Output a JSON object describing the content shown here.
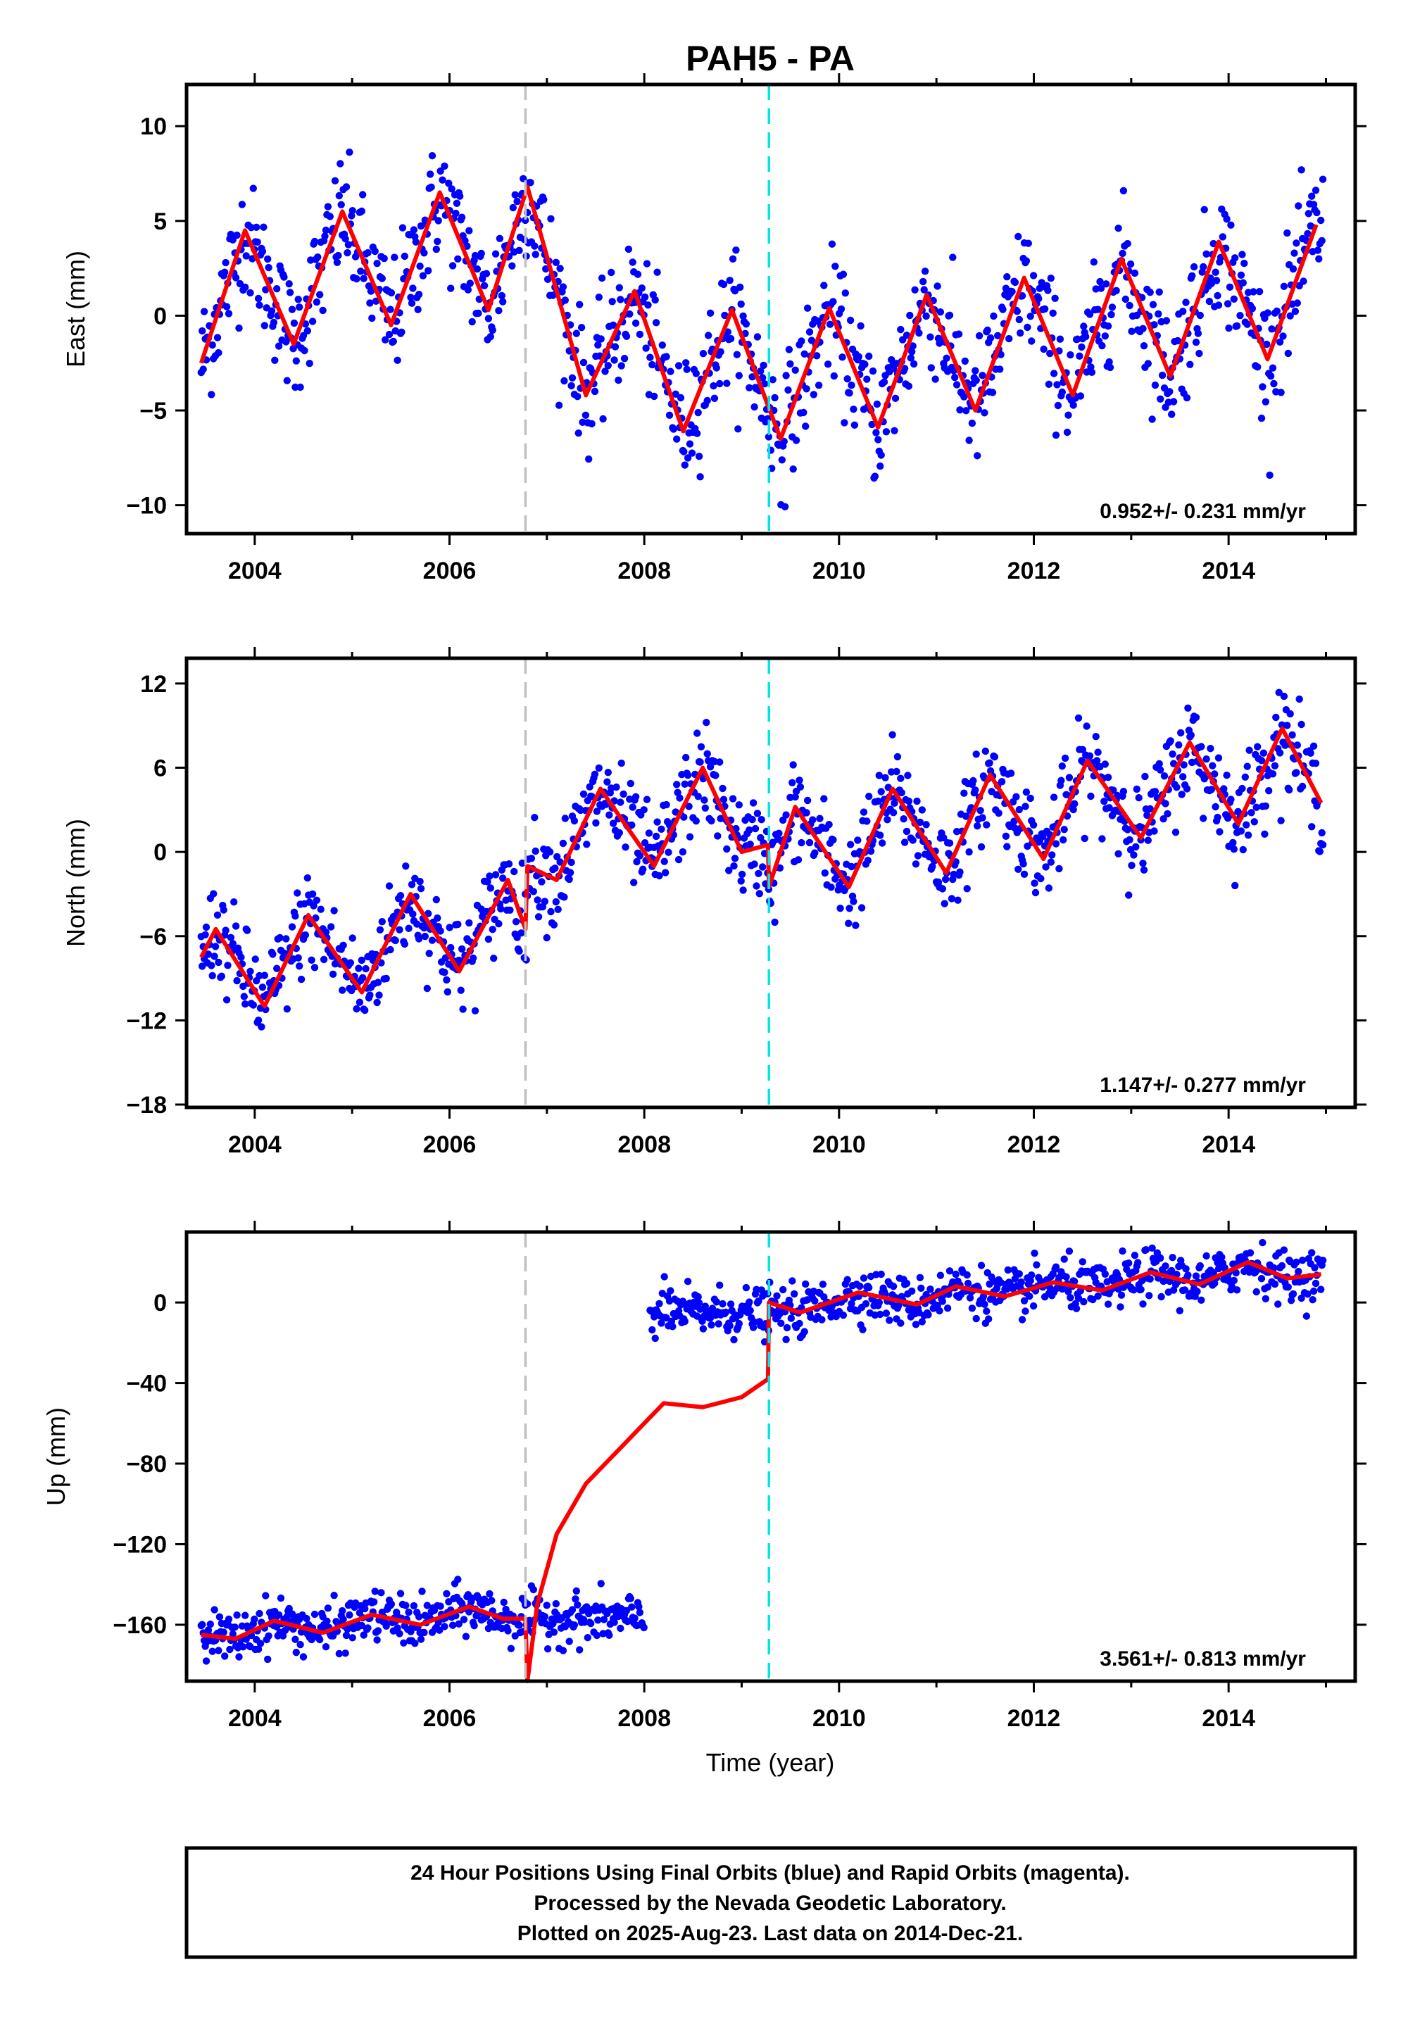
{
  "title": "PAH5 - PA",
  "xlabel": "Time (year)",
  "colors": {
    "final_orbits": "#0000ff",
    "model": "#ff0000",
    "event_gray": "#c0c0c0",
    "event_cyan": "#00e5e5"
  },
  "footer": {
    "line1": "24 Hour Positions Using Final Orbits (blue) and Rapid Orbits (magenta).",
    "line2": "Processed by the Nevada Geodetic Laboratory.",
    "line3": "Plotted on 2025-Aug-23. Last data on 2014-Dec-21."
  },
  "chart_data": [
    {
      "type": "scatter",
      "ylabel": "East (mm)",
      "rate_label": "0.952+/- 0.231 mm/yr",
      "xlim": [
        2003.3,
        2015.3
      ],
      "ylim": [
        -11.5,
        12.2
      ],
      "xticks": [
        2004,
        2006,
        2008,
        2010,
        2012,
        2014
      ],
      "yticks": [
        -10,
        -5,
        0,
        5,
        10
      ],
      "events": [
        {
          "x": 2006.78,
          "color": "gray"
        },
        {
          "x": 2009.28,
          "color": "cyan"
        }
      ],
      "series": [
        {
          "x": [
            2003.45,
            2003.9,
            2004.4,
            2004.9,
            2005.4,
            2005.9,
            2006.4,
            2006.8,
            2007.4,
            2007.9,
            2008.4,
            2008.9,
            2009.4,
            2009.9,
            2010.4,
            2010.9,
            2011.4,
            2011.9,
            2012.4,
            2012.9,
            2013.4,
            2013.9,
            2014.4,
            2014.9
          ],
          "y": [
            -2.5,
            4.5,
            -1.5,
            5.5,
            -0.5,
            6.5,
            0.3,
            6.8,
            -4.2,
            1.3,
            -6.1,
            0.3,
            -6.5,
            0.4,
            -5.9,
            1.1,
            -5.0,
            2.0,
            -4.2,
            3.0,
            -3.2,
            3.9,
            -2.3,
            4.8
          ]
        }
      ]
    },
    {
      "type": "scatter",
      "ylabel": "North (mm)",
      "rate_label": "1.147+/- 0.277 mm/yr",
      "xlim": [
        2003.3,
        2015.3
      ],
      "ylim": [
        -18.2,
        13.8
      ],
      "xticks": [
        2004,
        2006,
        2008,
        2010,
        2012,
        2014
      ],
      "yticks": [
        -18,
        -12,
        -6,
        0,
        6,
        12
      ],
      "events": [
        {
          "x": 2006.78,
          "color": "gray"
        },
        {
          "x": 2009.28,
          "color": "cyan"
        }
      ],
      "series": [
        {
          "x": [
            2003.45,
            2003.6,
            2004.1,
            2004.55,
            2005.1,
            2005.6,
            2006.1,
            2006.6,
            2006.78,
            2006.8,
            2007.1,
            2007.55,
            2008.1,
            2008.6,
            2009.0,
            2009.27,
            2009.28,
            2009.55,
            2010.1,
            2010.55,
            2011.1,
            2011.55,
            2012.1,
            2012.55,
            2013.1,
            2013.6,
            2014.1,
            2014.55,
            2014.95
          ],
          "y": [
            -7.5,
            -5.5,
            -11.0,
            -4.5,
            -10.0,
            -3.0,
            -8.5,
            -2.0,
            -5.5,
            -1.0,
            -2.0,
            4.5,
            -1.0,
            6.0,
            0.0,
            0.5,
            -2.5,
            3.2,
            -2.5,
            4.5,
            -1.5,
            5.5,
            -0.5,
            6.5,
            1.0,
            7.8,
            2.0,
            8.8,
            3.5
          ]
        }
      ]
    },
    {
      "type": "scatter",
      "ylabel": "Up (mm)",
      "rate_label": "3.561+/- 0.813 mm/yr",
      "xlim": [
        2003.3,
        2015.3
      ],
      "ylim": [
        -188,
        35
      ],
      "xticks": [
        2004,
        2006,
        2008,
        2010,
        2012,
        2014
      ],
      "yticks": [
        -160,
        -120,
        -80,
        -40,
        0
      ],
      "events": [
        {
          "x": 2006.78,
          "color": "gray"
        },
        {
          "x": 2009.28,
          "color": "cyan"
        }
      ],
      "series": [
        {
          "x": [
            2003.45,
            2003.8,
            2004.2,
            2004.7,
            2005.2,
            2005.7,
            2006.2,
            2006.55,
            2006.78,
            2006.8,
            2006.9,
            2007.1,
            2007.4,
            2007.8,
            2008.2,
            2008.6,
            2009.0,
            2009.27,
            2009.28,
            2009.6,
            2010.2,
            2010.8,
            2011.2,
            2011.7,
            2012.2,
            2012.7,
            2013.2,
            2013.7,
            2014.2,
            2014.6,
            2014.95
          ],
          "y": [
            -165,
            -167,
            -158,
            -164,
            -155,
            -160,
            -151,
            -157,
            -157,
            -188,
            -150,
            -115,
            -90,
            -70,
            -50,
            -52,
            -47,
            -38,
            0,
            -5,
            5,
            -1,
            8,
            3,
            10,
            6,
            15,
            9,
            20,
            12,
            14
          ]
        }
      ]
    }
  ]
}
